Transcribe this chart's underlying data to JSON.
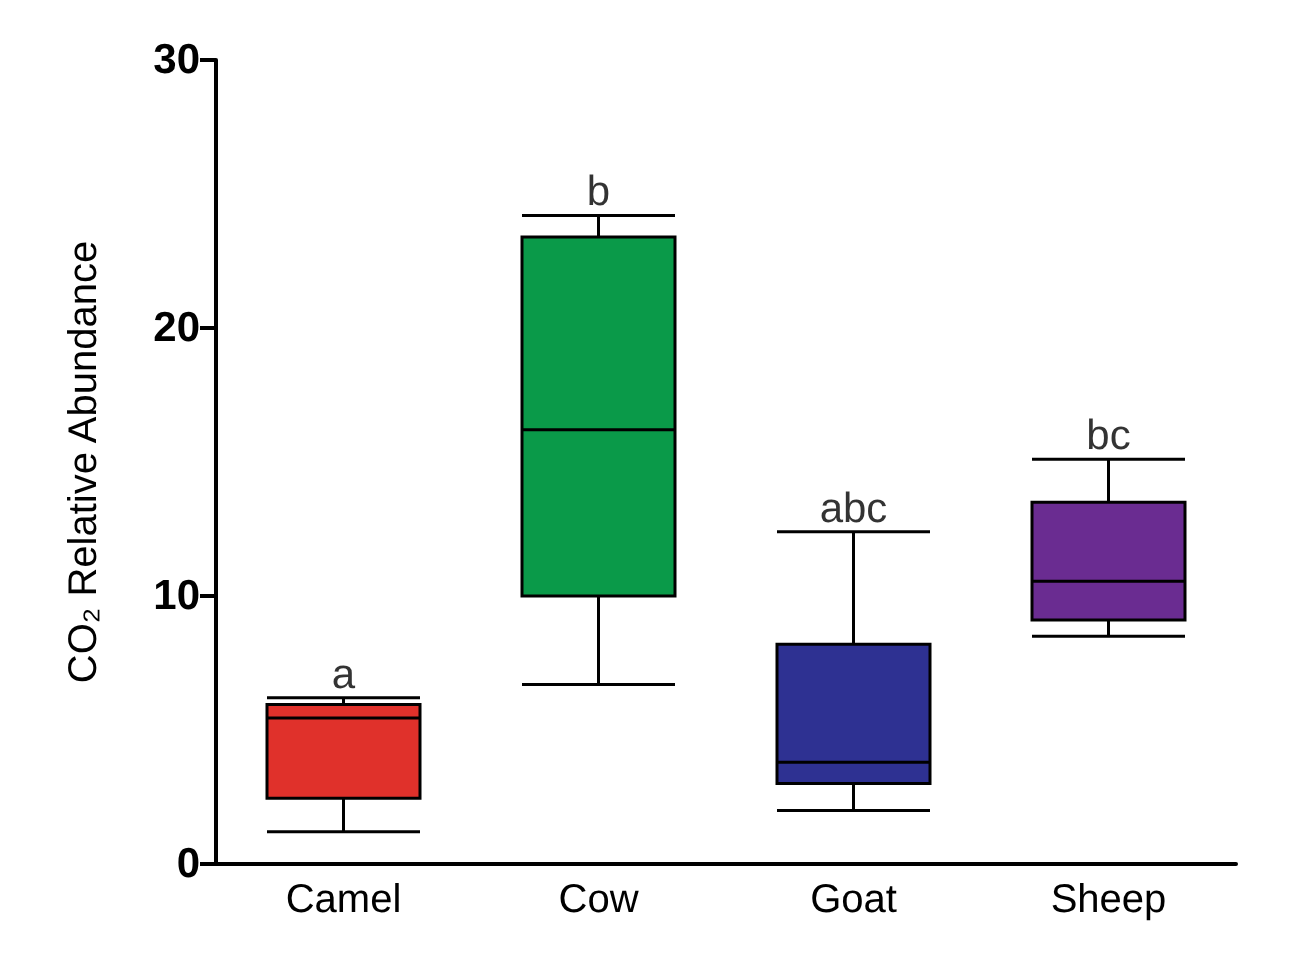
{
  "chart_data": {
    "type": "box",
    "ylabel": "CO₂ Relative Abundance",
    "categories": [
      "Camel",
      "Cow",
      "Goat",
      "Sheep"
    ],
    "colors": [
      "#e0312b",
      "#0a9a49",
      "#2e3192",
      "#6a2c91"
    ],
    "boxes": [
      {
        "low": 1.2,
        "q1": 2.45,
        "median": 5.45,
        "q3": 5.95,
        "high": 6.2
      },
      {
        "low": 6.7,
        "q1": 10.0,
        "median": 16.2,
        "q3": 23.4,
        "high": 24.2
      },
      {
        "low": 2.0,
        "q1": 3.0,
        "median": 3.8,
        "q3": 8.2,
        "high": 12.4
      },
      {
        "low": 8.5,
        "q1": 9.1,
        "median": 10.55,
        "q3": 13.5,
        "high": 15.1
      }
    ],
    "ylim": [
      0,
      30
    ],
    "yticks": [
      0,
      10,
      20,
      30
    ],
    "grid": false,
    "annotations": [
      {
        "text": "a",
        "x": "Camel",
        "y": 6.2
      },
      {
        "text": "b",
        "x": "Cow",
        "y": 24.2
      },
      {
        "text": "abc",
        "x": "Goat",
        "y": 12.4
      },
      {
        "text": "bc",
        "x": "Sheep",
        "y": 15.1
      }
    ]
  }
}
